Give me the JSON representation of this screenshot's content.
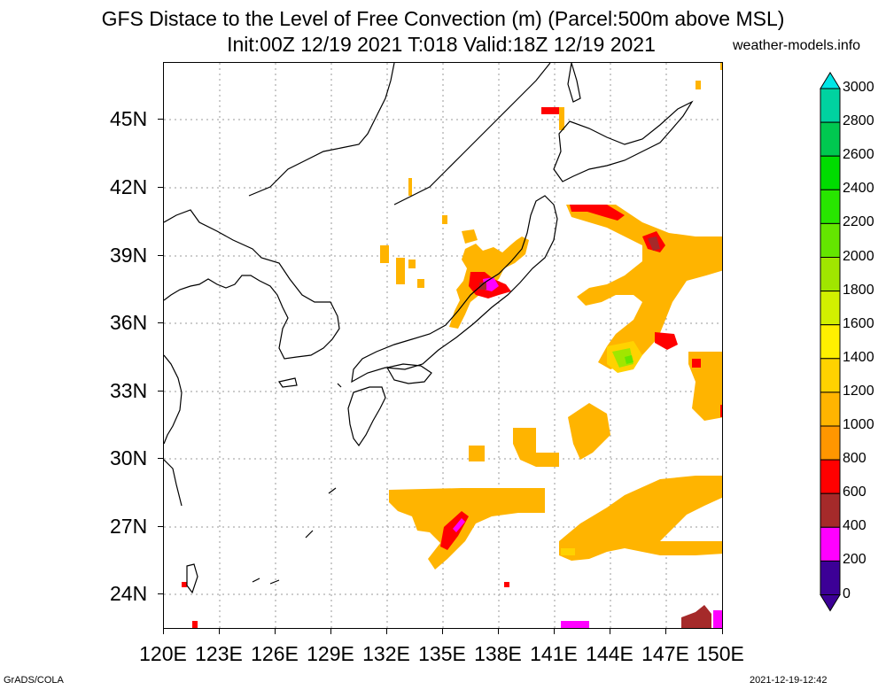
{
  "header": {
    "title_line1": "GFS Distace to the Level of Free Convection (m) (Parcel:500m above MSL)",
    "title_line2": "Init:00Z 12/19 2021 T:018 Valid:18Z 12/19 2021",
    "credit": "weather-models.info"
  },
  "map": {
    "lat_labels": [
      "45N",
      "42N",
      "39N",
      "36N",
      "33N",
      "30N",
      "27N",
      "24N"
    ],
    "lon_labels": [
      "120E",
      "123E",
      "126E",
      "129E",
      "132E",
      "135E",
      "138E",
      "141E",
      "144E",
      "147E",
      "150E"
    ]
  },
  "colorbar": {
    "labels": [
      "3000",
      "2800",
      "2600",
      "2400",
      "2200",
      "2000",
      "1800",
      "1600",
      "1400",
      "1200",
      "1000",
      "800",
      "600",
      "400",
      "200",
      "0"
    ],
    "colors": [
      "#00e6e6",
      "#00d2a0",
      "#00c850",
      "#00dc00",
      "#28e600",
      "#64e600",
      "#a0e600",
      "#d2f000",
      "#fff000",
      "#ffd200",
      "#ffb400",
      "#ff9600",
      "#ff0000",
      "#a52a2a",
      "#ff00ff",
      "#3c0096"
    ]
  },
  "footer": {
    "left": "GrADS/COLA",
    "right": "2021-12-19-12:42"
  }
}
